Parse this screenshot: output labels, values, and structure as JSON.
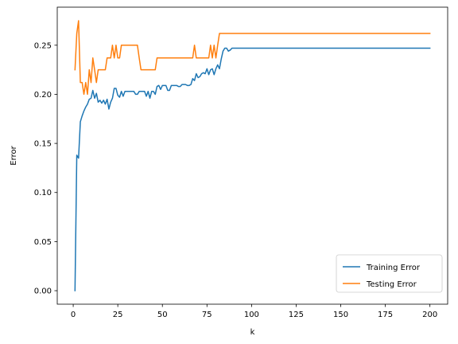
{
  "chart_data": {
    "type": "line",
    "title": "",
    "xlabel": "k",
    "ylabel": "Error",
    "xlim": [
      -8.95,
      209.95
    ],
    "ylim": [
      -0.01375,
      0.28875
    ],
    "xticks": [
      "0",
      "25",
      "50",
      "75",
      "100",
      "125",
      "150",
      "175",
      "200"
    ],
    "yticks": [
      "0.00",
      "0.05",
      "0.10",
      "0.15",
      "0.20",
      "0.25"
    ],
    "grid": false,
    "legend_position": "lower-right",
    "series": [
      {
        "name": "Training Error",
        "color": "#1f77b4",
        "points": [
          [
            1,
            0.0
          ],
          [
            2,
            0.138
          ],
          [
            3,
            0.135
          ],
          [
            4,
            0.172
          ],
          [
            5,
            0.178
          ],
          [
            6,
            0.183
          ],
          [
            7,
            0.187
          ],
          [
            8,
            0.19
          ],
          [
            9,
            0.195
          ],
          [
            10,
            0.196
          ],
          [
            11,
            0.204
          ],
          [
            12,
            0.196
          ],
          [
            13,
            0.201
          ],
          [
            14,
            0.192
          ],
          [
            15,
            0.194
          ],
          [
            16,
            0.191
          ],
          [
            17,
            0.194
          ],
          [
            18,
            0.19
          ],
          [
            19,
            0.195
          ],
          [
            20,
            0.185
          ],
          [
            21,
            0.192
          ],
          [
            22,
            0.196
          ],
          [
            23,
            0.206
          ],
          [
            24,
            0.206
          ],
          [
            25,
            0.199
          ],
          [
            26,
            0.197
          ],
          [
            27,
            0.203
          ],
          [
            28,
            0.198
          ],
          [
            29,
            0.203
          ],
          [
            30,
            0.203
          ],
          [
            34,
            0.203
          ],
          [
            35,
            0.2
          ],
          [
            36,
            0.2
          ],
          [
            37,
            0.203
          ],
          [
            38,
            0.203
          ],
          [
            40,
            0.203
          ],
          [
            41,
            0.198
          ],
          [
            42,
            0.203
          ],
          [
            43,
            0.196
          ],
          [
            44,
            0.203
          ],
          [
            45,
            0.203
          ],
          [
            46,
            0.2
          ],
          [
            47,
            0.208
          ],
          [
            48,
            0.209
          ],
          [
            49,
            0.205
          ],
          [
            50,
            0.209
          ],
          [
            52,
            0.209
          ],
          [
            53,
            0.204
          ],
          [
            54,
            0.204
          ],
          [
            55,
            0.209
          ],
          [
            58,
            0.209
          ],
          [
            59,
            0.208
          ],
          [
            60,
            0.208
          ],
          [
            61,
            0.21
          ],
          [
            62,
            0.21
          ],
          [
            63,
            0.21
          ],
          [
            64,
            0.209
          ],
          [
            65,
            0.209
          ],
          [
            66,
            0.21
          ],
          [
            67,
            0.216
          ],
          [
            68,
            0.214
          ],
          [
            69,
            0.221
          ],
          [
            70,
            0.217
          ],
          [
            71,
            0.218
          ],
          [
            72,
            0.221
          ],
          [
            73,
            0.222
          ],
          [
            74,
            0.221
          ],
          [
            75,
            0.226
          ],
          [
            76,
            0.22
          ],
          [
            77,
            0.225
          ],
          [
            78,
            0.226
          ],
          [
            79,
            0.22
          ],
          [
            80,
            0.226
          ],
          [
            81,
            0.23
          ],
          [
            82,
            0.226
          ],
          [
            83,
            0.236
          ],
          [
            84,
            0.244
          ],
          [
            85,
            0.247
          ],
          [
            86,
            0.247
          ],
          [
            87,
            0.244
          ],
          [
            88,
            0.245
          ],
          [
            89,
            0.247
          ],
          [
            200,
            0.247
          ]
        ]
      },
      {
        "name": "Testing Error",
        "color": "#ff7f0e",
        "points": [
          [
            1,
            0.225
          ],
          [
            2,
            0.262
          ],
          [
            3,
            0.275
          ],
          [
            4,
            0.212
          ],
          [
            5,
            0.212
          ],
          [
            6,
            0.2
          ],
          [
            7,
            0.212
          ],
          [
            8,
            0.2
          ],
          [
            9,
            0.225
          ],
          [
            10,
            0.212
          ],
          [
            11,
            0.237
          ],
          [
            12,
            0.225
          ],
          [
            13,
            0.212
          ],
          [
            14,
            0.225
          ],
          [
            15,
            0.225
          ],
          [
            18,
            0.225
          ],
          [
            19,
            0.237
          ],
          [
            21,
            0.237
          ],
          [
            22,
            0.25
          ],
          [
            23,
            0.237
          ],
          [
            24,
            0.25
          ],
          [
            25,
            0.237
          ],
          [
            26,
            0.237
          ],
          [
            27,
            0.25
          ],
          [
            36,
            0.25
          ],
          [
            37,
            0.237
          ],
          [
            38,
            0.225
          ],
          [
            46,
            0.225
          ],
          [
            47,
            0.237
          ],
          [
            67,
            0.237
          ],
          [
            68,
            0.25
          ],
          [
            69,
            0.237
          ],
          [
            76,
            0.237
          ],
          [
            77,
            0.25
          ],
          [
            78,
            0.237
          ],
          [
            79,
            0.25
          ],
          [
            80,
            0.237
          ],
          [
            81,
            0.25
          ],
          [
            82,
            0.262
          ],
          [
            200,
            0.262
          ]
        ]
      }
    ]
  }
}
